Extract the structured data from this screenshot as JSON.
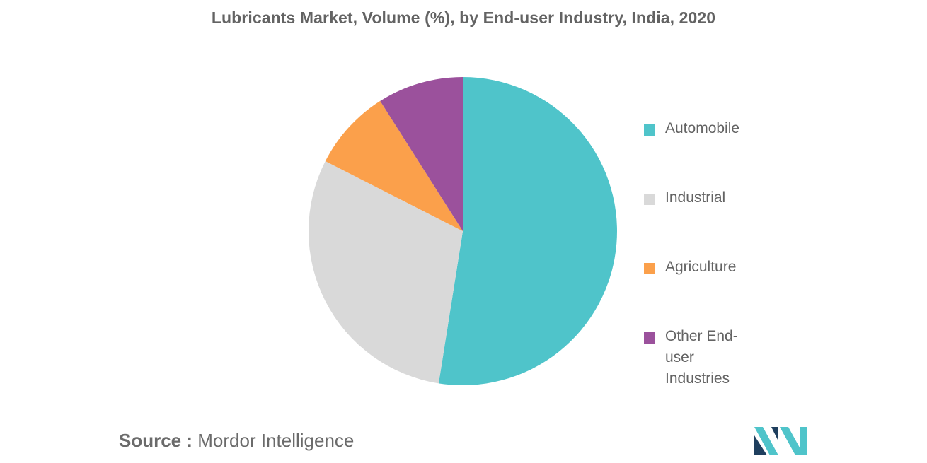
{
  "title": "Lubricants Market, Volume (%), by End-user Industry, India, 2020",
  "chart_data": {
    "type": "pie",
    "title": "Lubricants Market, Volume (%), by End-user Industry, India, 2020",
    "categories": [
      "Automobile",
      "Industrial",
      "Agriculture",
      "Other End-user Industries"
    ],
    "values": [
      52.5,
      30,
      8.5,
      9
    ],
    "legend_position": "right",
    "colors": [
      "#4fc4ca",
      "#d9d9d9",
      "#fba04b",
      "#9b519c"
    ]
  },
  "source": {
    "prefix": "Source :",
    "text": "Mordor Intelligence"
  },
  "logo": {
    "icon": "mordor-intelligence-logo-icon",
    "colors": [
      "#1f3f5e",
      "#4fc4ca"
    ]
  }
}
